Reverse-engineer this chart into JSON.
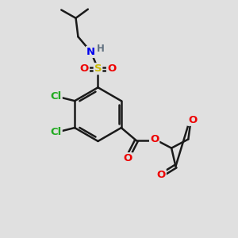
{
  "background_color": "#e0e0e0",
  "bond_color": "#1a1a1a",
  "bond_width": 1.8,
  "atom_colors": {
    "C": "#1a1a1a",
    "H": "#607080",
    "N": "#0000ee",
    "O": "#ee0000",
    "S": "#ccbb00",
    "Cl": "#22aa22"
  },
  "fs": 9.5
}
